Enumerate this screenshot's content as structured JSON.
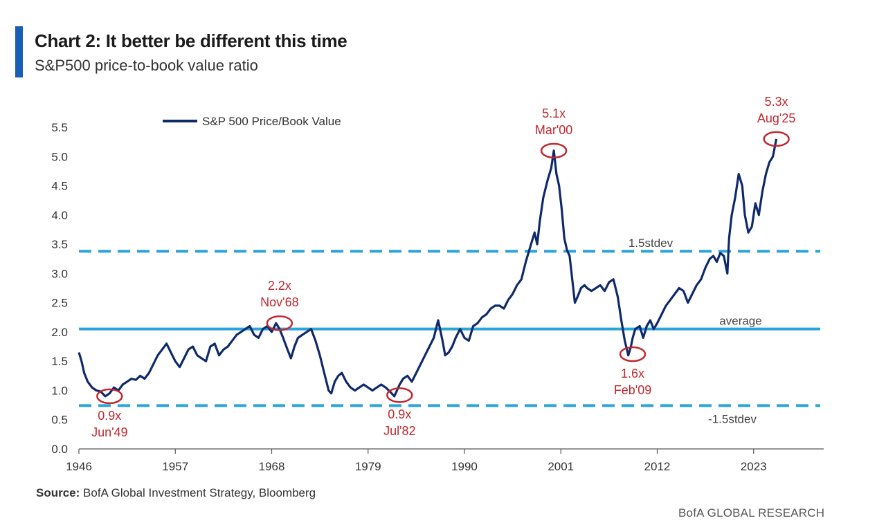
{
  "header": {
    "title": "Chart 2: It better be different this time",
    "subtitle": "S&P500 price-to-book value ratio"
  },
  "footer": {
    "source_label": "Source:",
    "source_text": " BofA Global Investment Strategy, Bloomberg",
    "brand": "BofA GLOBAL RESEARCH"
  },
  "colors": {
    "series": "#0f2a6b",
    "average_line": "#2aa4dc",
    "stdev_lines": "#2aa4dc",
    "annotation": "#c0282e",
    "accent_bar": "#1a5fb4"
  },
  "chart_data": {
    "type": "line",
    "title": "Chart 2: It better be different this time",
    "subtitle": "S&P500 price-to-book value ratio",
    "xlim": [
      1946,
      2031
    ],
    "ylim": [
      0.0,
      5.5
    ],
    "x_ticks": [
      "1946",
      "1957",
      "1968",
      "1979",
      "1990",
      "2001",
      "2012",
      "2023"
    ],
    "y_ticks": [
      "0.0",
      "0.5",
      "1.0",
      "1.5",
      "2.0",
      "2.5",
      "3.0",
      "3.5",
      "4.0",
      "4.5",
      "5.0",
      "5.5"
    ],
    "grid": false,
    "legend": {
      "position": "top-left",
      "entries": [
        "S&P 500 Price/Book Value"
      ]
    },
    "series": [
      {
        "name": "S&P 500 Price/Book Value",
        "x": [
          1946.0,
          1946.3,
          1946.6,
          1947.0,
          1947.5,
          1948.0,
          1948.5,
          1949.0,
          1949.5,
          1950.0,
          1950.5,
          1951.0,
          1951.5,
          1952.0,
          1952.5,
          1953.0,
          1953.5,
          1954.0,
          1954.5,
          1955.0,
          1955.5,
          1956.0,
          1956.5,
          1957.0,
          1957.5,
          1958.0,
          1958.5,
          1959.0,
          1959.5,
          1960.0,
          1960.5,
          1961.0,
          1961.5,
          1962.0,
          1962.5,
          1963.0,
          1963.5,
          1964.0,
          1964.5,
          1965.0,
          1965.5,
          1966.0,
          1966.5,
          1967.0,
          1967.5,
          1968.0,
          1968.5,
          1968.9,
          1969.3,
          1969.8,
          1970.2,
          1970.6,
          1971.0,
          1971.5,
          1972.0,
          1972.5,
          1973.0,
          1973.5,
          1974.0,
          1974.5,
          1974.8,
          1975.2,
          1975.6,
          1976.0,
          1976.5,
          1977.0,
          1977.5,
          1978.0,
          1978.5,
          1979.0,
          1979.5,
          1980.0,
          1980.5,
          1981.0,
          1981.5,
          1982.0,
          1982.3,
          1982.6,
          1983.0,
          1983.5,
          1984.0,
          1984.5,
          1985.0,
          1985.5,
          1986.0,
          1986.5,
          1987.0,
          1987.5,
          1987.8,
          1988.2,
          1988.6,
          1989.0,
          1989.5,
          1990.0,
          1990.5,
          1991.0,
          1991.5,
          1992.0,
          1992.5,
          1993.0,
          1993.5,
          1994.0,
          1994.5,
          1995.0,
          1995.5,
          1996.0,
          1996.5,
          1997.0,
          1997.5,
          1998.0,
          1998.3,
          1998.6,
          1999.0,
          1999.5,
          1999.9,
          2000.2,
          2000.5,
          2000.8,
          2001.1,
          2001.4,
          2001.7,
          2002.0,
          2002.3,
          2002.6,
          2002.9,
          2003.3,
          2003.7,
          2004.0,
          2004.5,
          2005.0,
          2005.5,
          2006.0,
          2006.5,
          2007.0,
          2007.5,
          2007.9,
          2008.3,
          2008.7,
          2009.0,
          2009.2,
          2009.5,
          2010.0,
          2010.4,
          2010.8,
          2011.2,
          2011.6,
          2012.0,
          2012.5,
          2013.0,
          2013.5,
          2014.0,
          2014.5,
          2015.0,
          2015.5,
          2016.0,
          2016.5,
          2017.0,
          2017.5,
          2018.0,
          2018.4,
          2018.8,
          2019.2,
          2019.6,
          2020.0,
          2020.2,
          2020.5,
          2020.9,
          2021.3,
          2021.7,
          2022.0,
          2022.4,
          2022.8,
          2023.2,
          2023.6,
          2024.0,
          2024.4,
          2024.8,
          2025.2,
          2025.6
        ],
        "values": [
          1.65,
          1.5,
          1.3,
          1.15,
          1.05,
          1.0,
          0.98,
          0.9,
          0.95,
          1.05,
          1.0,
          1.1,
          1.15,
          1.2,
          1.18,
          1.25,
          1.2,
          1.3,
          1.45,
          1.6,
          1.7,
          1.8,
          1.65,
          1.5,
          1.4,
          1.55,
          1.7,
          1.75,
          1.6,
          1.55,
          1.5,
          1.75,
          1.8,
          1.6,
          1.7,
          1.75,
          1.85,
          1.95,
          2.0,
          2.05,
          2.1,
          1.95,
          1.9,
          2.05,
          2.1,
          2.0,
          2.15,
          2.05,
          1.9,
          1.7,
          1.55,
          1.75,
          1.9,
          1.95,
          2.0,
          2.05,
          1.85,
          1.6,
          1.3,
          1.0,
          0.95,
          1.15,
          1.25,
          1.3,
          1.15,
          1.05,
          1.0,
          1.05,
          1.1,
          1.05,
          1.0,
          1.05,
          1.1,
          1.05,
          0.98,
          0.9,
          1.0,
          1.1,
          1.2,
          1.25,
          1.15,
          1.3,
          1.45,
          1.6,
          1.75,
          1.9,
          2.2,
          1.85,
          1.6,
          1.65,
          1.75,
          1.9,
          2.05,
          1.9,
          1.85,
          2.1,
          2.15,
          2.25,
          2.3,
          2.4,
          2.45,
          2.45,
          2.4,
          2.55,
          2.65,
          2.8,
          2.9,
          3.2,
          3.45,
          3.7,
          3.5,
          3.9,
          4.3,
          4.6,
          4.8,
          5.1,
          4.7,
          4.5,
          4.1,
          3.6,
          3.4,
          3.3,
          2.9,
          2.5,
          2.6,
          2.75,
          2.8,
          2.75,
          2.7,
          2.75,
          2.8,
          2.7,
          2.85,
          2.9,
          2.6,
          2.2,
          1.85,
          1.6,
          1.75,
          1.9,
          2.05,
          2.1,
          1.9,
          2.1,
          2.2,
          2.05,
          2.15,
          2.3,
          2.45,
          2.55,
          2.65,
          2.75,
          2.7,
          2.5,
          2.65,
          2.8,
          2.9,
          3.1,
          3.25,
          3.3,
          3.2,
          3.35,
          3.3,
          3.0,
          3.6,
          4.0,
          4.3,
          4.7,
          4.5,
          4.0,
          3.7,
          3.8,
          4.2,
          4.0,
          4.4,
          4.7,
          4.9,
          5.0,
          5.3
        ]
      }
    ],
    "reference_lines": [
      {
        "label": "average",
        "y": 2.05,
        "style": "solid"
      },
      {
        "label": "1.5stdev",
        "y": 3.38,
        "style": "dashed"
      },
      {
        "label": "-1.5stdev",
        "y": 0.74,
        "style": "dashed"
      }
    ],
    "annotations": [
      {
        "value_label": "0.9x",
        "date_label": "Jun'49",
        "x": 1949.5,
        "y": 0.9,
        "placement": "below"
      },
      {
        "value_label": "2.2x",
        "date_label": "Nov'68",
        "x": 1968.9,
        "y": 2.15,
        "placement": "above"
      },
      {
        "value_label": "0.9x",
        "date_label": "Jul'82",
        "x": 1982.6,
        "y": 0.92,
        "placement": "below"
      },
      {
        "value_label": "5.1x",
        "date_label": "Mar'00",
        "x": 2000.2,
        "y": 5.1,
        "placement": "above"
      },
      {
        "value_label": "1.6x",
        "date_label": "Feb'09",
        "x": 2009.2,
        "y": 1.62,
        "placement": "below"
      },
      {
        "value_label": "5.3x",
        "date_label": "Aug'25",
        "x": 2025.6,
        "y": 5.3,
        "placement": "above"
      }
    ]
  }
}
